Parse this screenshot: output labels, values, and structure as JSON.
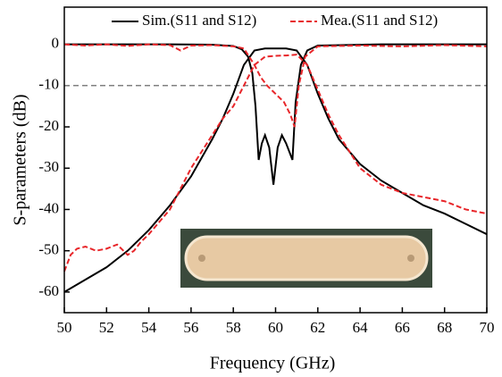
{
  "chart_data": {
    "type": "line",
    "xlabel": "Frequency (GHz)",
    "ylabel": "S-parameters (dB)",
    "xlim": [
      50,
      70
    ],
    "xticks": [
      50,
      52,
      54,
      56,
      58,
      60,
      62,
      64,
      66,
      68,
      70
    ],
    "ylim": [
      -65,
      9
    ],
    "yticks": [
      -60,
      -50,
      -40,
      -30,
      -20,
      -10,
      0
    ],
    "hline": {
      "value": -10,
      "color": "#808080"
    },
    "series": [
      {
        "name": "Sim.(S11 and S12)",
        "color": "#000000",
        "dashed": false,
        "x": [
          50,
          55,
          57,
          58,
          58.4,
          58.7,
          58.9,
          59.05,
          59.2,
          59.35,
          59.5,
          59.7,
          59.9,
          60.1,
          60.3,
          60.5,
          60.65,
          60.8,
          60.95,
          61.2,
          61.5,
          62,
          65,
          70
        ],
        "values": [
          0,
          0,
          -0.1,
          -0.4,
          -1.2,
          -3,
          -7,
          -15,
          -28,
          -24,
          -22,
          -25,
          -34,
          -25,
          -22,
          -24,
          -26,
          -28,
          -14,
          -5,
          -1.5,
          -0.3,
          0,
          0
        ]
      },
      {
        "color": "#000000",
        "dashed": false,
        "x": [
          50,
          51,
          52,
          53,
          54,
          55,
          56,
          57,
          57.5,
          58,
          58.5,
          59,
          59.5,
          60,
          60.5,
          61,
          61.5,
          62,
          62.5,
          63,
          64,
          65,
          66,
          67,
          68,
          69,
          70
        ],
        "values": [
          -60,
          -57,
          -54,
          -50,
          -45,
          -39,
          -32,
          -23,
          -18,
          -12,
          -5,
          -1.5,
          -1,
          -1,
          -1,
          -1.5,
          -5,
          -12,
          -18,
          -23,
          -29,
          -33,
          -36,
          -39,
          -41,
          -43.5,
          -46
        ]
      },
      {
        "name": "Mea.(S11 and S12)",
        "color": "#e8262a",
        "dashed": true,
        "x": [
          50,
          51,
          52,
          53,
          54,
          55,
          55.5,
          56,
          57,
          58,
          58.5,
          59,
          59.3,
          59.6,
          60,
          60.4,
          60.7,
          60.9,
          61.1,
          61.4,
          62,
          64,
          66,
          68,
          70
        ],
        "values": [
          0,
          -0.3,
          0,
          -0.4,
          0,
          -0.2,
          -1.5,
          -0.3,
          -0.2,
          -0.5,
          -1,
          -5,
          -8,
          -10,
          -12,
          -14,
          -17,
          -20,
          -10,
          -3,
          -0.5,
          -0.3,
          -0.5,
          -0.2,
          -0.5
        ]
      },
      {
        "color": "#e8262a",
        "dashed": true,
        "x": [
          50,
          50.3,
          50.6,
          51,
          51.5,
          52,
          52.5,
          53,
          53.3,
          53.6,
          54,
          55,
          56,
          57,
          57.5,
          58,
          58.5,
          59,
          59.5,
          60,
          60.5,
          61,
          61.5,
          62,
          62.5,
          63,
          64,
          65,
          66,
          67,
          68,
          69,
          70
        ],
        "values": [
          -55,
          -51,
          -49.5,
          -49,
          -50,
          -49.5,
          -48.5,
          -51,
          -50,
          -48,
          -46,
          -40,
          -30,
          -22,
          -18,
          -15,
          -10,
          -5,
          -3,
          -2.8,
          -2.7,
          -2.5,
          -5,
          -11,
          -17,
          -22,
          -30,
          -34,
          -36,
          -37,
          -38,
          -40,
          -41
        ]
      }
    ]
  }
}
